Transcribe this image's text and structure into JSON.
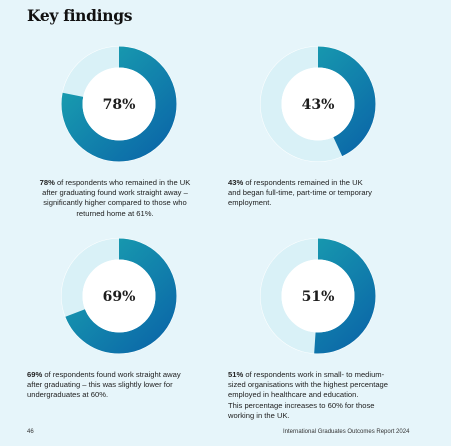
{
  "title": "Key findings",
  "footer": {
    "page_number": "46",
    "report_title": "International Graduates Outcomes Report 2024"
  },
  "colors": {
    "ring_dark": "#0b67a8",
    "ring_teal": "#1aa3b0",
    "track": "#d9f1f7",
    "background": "#e6f5fa"
  },
  "findings": [
    {
      "percent": 78,
      "percent_label": "78%",
      "lines": [
        {
          "hl": "78%",
          "rest": " of respondents who remained in the UK"
        },
        {
          "hl": "",
          "rest": "after graduating found work straight away –"
        },
        {
          "hl": "",
          "rest": "significantly higher compared to those who"
        },
        {
          "hl": "",
          "rest": "returned home at 61%."
        }
      ]
    },
    {
      "percent": 43,
      "percent_label": "43%",
      "lines": [
        {
          "hl": "43%",
          "rest": " of respondents remained in the UK"
        },
        {
          "hl": "",
          "rest": "and began full-time, part-time or temporary"
        },
        {
          "hl": "",
          "rest": "employment."
        }
      ]
    },
    {
      "percent": 69,
      "percent_label": "69%",
      "lines": [
        {
          "hl": "69%",
          "rest": " of respondents found work straight away"
        },
        {
          "hl": "",
          "rest": "after graduating – this was slightly lower for"
        },
        {
          "hl": "",
          "rest": "undergraduates at 60%."
        }
      ]
    },
    {
      "percent": 51,
      "percent_label": "51%",
      "lines": [
        {
          "hl": "51%",
          "rest": " of respondents work in small- to medium-"
        },
        {
          "hl": "",
          "rest": "sized organisations with the highest percentage"
        },
        {
          "hl": "",
          "rest": "employed in healthcare and education."
        },
        {
          "hl": "",
          "rest": "This percentage increases to 60% for those"
        },
        {
          "hl": "",
          "rest": "working in the UK."
        }
      ]
    }
  ]
}
